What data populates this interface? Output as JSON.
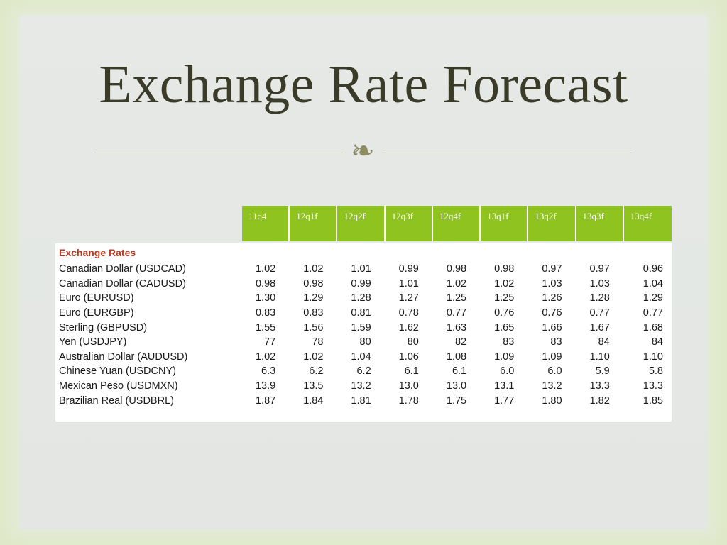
{
  "title": "Exchange Rate Forecast",
  "ornament": "❧",
  "table": {
    "title": "Exchange Rates",
    "columns": [
      "11q4",
      "12q1f",
      "12q2f",
      "12q3f",
      "12q4f",
      "13q1f",
      "13q2f",
      "13q3f",
      "13q4f"
    ],
    "rows": [
      {
        "label": "Canadian Dollar (USDCAD)",
        "values": [
          "1.02",
          "1.02",
          "1.01",
          "0.99",
          "0.98",
          "0.98",
          "0.97",
          "0.97",
          "0.96"
        ]
      },
      {
        "label": "Canadian Dollar (CADUSD)",
        "values": [
          "0.98",
          "0.98",
          "0.99",
          "1.01",
          "1.02",
          "1.02",
          "1.03",
          "1.03",
          "1.04"
        ]
      },
      {
        "label": "Euro (EURUSD)",
        "values": [
          "1.30",
          "1.29",
          "1.28",
          "1.27",
          "1.25",
          "1.25",
          "1.26",
          "1.28",
          "1.29"
        ]
      },
      {
        "label": "Euro (EURGBP)",
        "values": [
          "0.83",
          "0.83",
          "0.81",
          "0.78",
          "0.77",
          "0.76",
          "0.76",
          "0.77",
          "0.77"
        ]
      },
      {
        "label": "Sterling (GBPUSD)",
        "values": [
          "1.55",
          "1.56",
          "1.59",
          "1.62",
          "1.63",
          "1.65",
          "1.66",
          "1.67",
          "1.68"
        ]
      },
      {
        "label": "Yen (USDJPY)",
        "values": [
          "77",
          "78",
          "80",
          "80",
          "82",
          "83",
          "83",
          "84",
          "84"
        ]
      },
      {
        "label": "Australian Dollar (AUDUSD)",
        "values": [
          "1.02",
          "1.02",
          "1.04",
          "1.06",
          "1.08",
          "1.09",
          "1.09",
          "1.10",
          "1.10"
        ]
      },
      {
        "label": "Chinese Yuan (USDCNY)",
        "values": [
          "6.3",
          "6.2",
          "6.2",
          "6.1",
          "6.1",
          "6.0",
          "6.0",
          "5.9",
          "5.8"
        ]
      },
      {
        "label": "Mexican Peso (USDMXN)",
        "values": [
          "13.9",
          "13.5",
          "13.2",
          "13.0",
          "13.0",
          "13.1",
          "13.2",
          "13.3",
          "13.3"
        ]
      },
      {
        "label": "Brazilian Real (USDBRL)",
        "values": [
          "1.87",
          "1.84",
          "1.81",
          "1.78",
          "1.75",
          "1.77",
          "1.80",
          "1.82",
          "1.85"
        ]
      }
    ]
  },
  "colors": {
    "header_green": "#8fc31f",
    "title_text": "#3b3b2a",
    "table_title_red": "#b83a1f",
    "frame_green": "#dfe9c9"
  }
}
